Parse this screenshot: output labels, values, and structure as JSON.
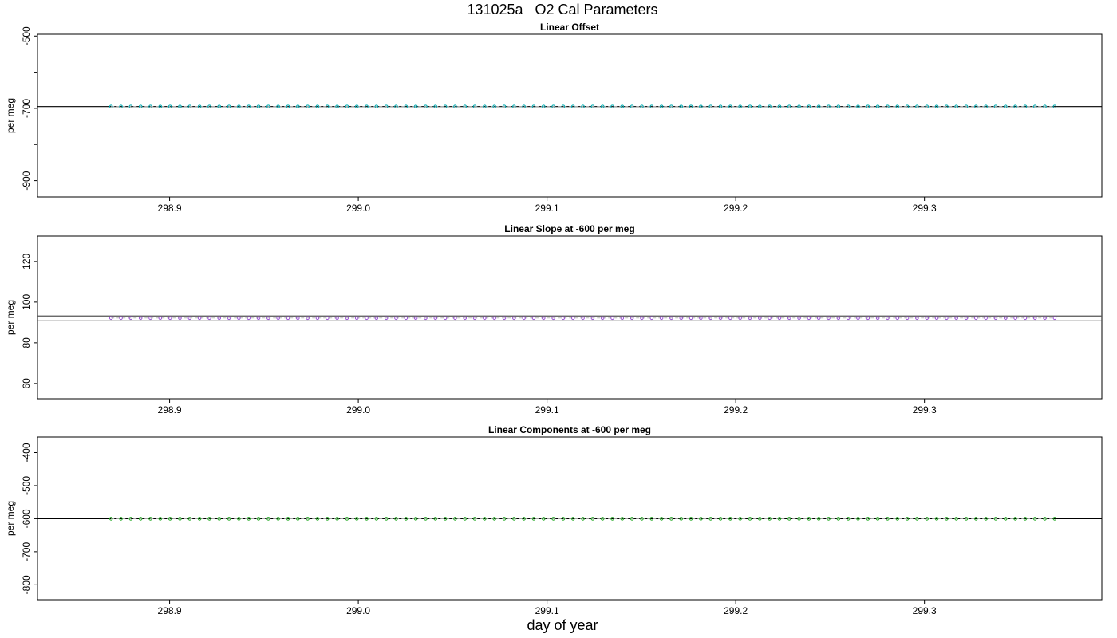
{
  "title": "131025a   O2 Cal Parameters",
  "xlabel": "day of year",
  "chart_data": [
    {
      "type": "scatter",
      "title": "Linear Offset",
      "ylabel": "per meg",
      "xlim": [
        298.83,
        299.394
      ],
      "ylim": [
        -945,
        -495
      ],
      "x_ticks": [
        298.9,
        299.0,
        299.1,
        299.2,
        299.3
      ],
      "x_tick_labels": [
        "298.9",
        "299.0",
        "299.1",
        "299.2",
        "299.3"
      ],
      "y_ticks": [
        -500,
        -700,
        -900
      ],
      "y_tick_labels": [
        "-500",
        "-700",
        "-900"
      ],
      "y_minor_ticks": [
        -600,
        -800
      ],
      "reference_lines": [
        {
          "y": -695,
          "color": "#000000"
        }
      ],
      "series": [
        {
          "marker": "circle",
          "color": "#00aab0",
          "line_color": "#bbbbbb",
          "x_start": 298.869,
          "x_end": 299.369,
          "count": 97,
          "y": -695
        }
      ]
    },
    {
      "type": "scatter",
      "title": "Linear Slope at -600 per meg",
      "ylabel": "per meg",
      "xlim": [
        298.83,
        299.394
      ],
      "ylim": [
        52.5,
        132.5
      ],
      "x_ticks": [
        298.9,
        299.0,
        299.1,
        299.2,
        299.3
      ],
      "x_tick_labels": [
        "298.9",
        "299.0",
        "299.1",
        "299.2",
        "299.3"
      ],
      "y_ticks": [
        60,
        80,
        100,
        120
      ],
      "y_tick_labels": [
        "60",
        "80",
        "100",
        "120"
      ],
      "y_minor_ticks": [],
      "reference_lines": [
        {
          "y": 93.2,
          "color": "#555555"
        },
        {
          "y": 90.8,
          "color": "#555555"
        }
      ],
      "series": [
        {
          "marker": "circle",
          "color": "#9a4fd6",
          "line_color": "#bbbbbb",
          "x_start": 298.869,
          "x_end": 299.369,
          "count": 97,
          "y": 92.2
        }
      ]
    },
    {
      "type": "scatter",
      "title": "Linear Components at -600 per meg",
      "ylabel": "per meg",
      "xlim": [
        298.83,
        299.394
      ],
      "ylim": [
        -845,
        -353
      ],
      "x_ticks": [
        298.9,
        299.0,
        299.1,
        299.2,
        299.3
      ],
      "x_tick_labels": [
        "298.9",
        "299.0",
        "299.1",
        "299.2",
        "299.3"
      ],
      "y_ticks": [
        -400,
        -500,
        -600,
        -700,
        -800
      ],
      "y_tick_labels": [
        "-400",
        "-500",
        "-600",
        "-700",
        "-800"
      ],
      "y_minor_ticks": [],
      "reference_lines": [
        {
          "y": -600,
          "color": "#000000"
        }
      ],
      "series": [
        {
          "marker": "circle",
          "color": "#22aa22",
          "line_color": "#bbbbbb",
          "x_start": 298.869,
          "x_end": 299.369,
          "count": 97,
          "y": -600
        }
      ]
    }
  ]
}
